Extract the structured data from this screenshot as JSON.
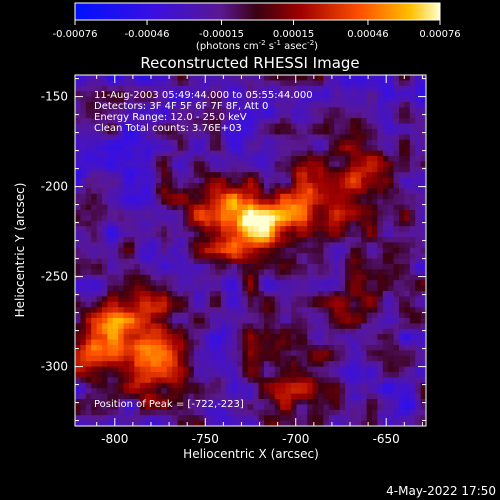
{
  "colorbar": {
    "ticks": [
      -0.00076,
      -0.00046,
      -0.00015,
      0.00015,
      0.00046,
      0.00076
    ],
    "tick_labels": [
      "-0.00076",
      "-0.00046",
      "-0.00015",
      "0.00015",
      "0.00046",
      "0.00076"
    ],
    "label_prefix": "(photons cm",
    "label_exp1": "-2",
    "label_mid": " s",
    "label_exp2": "-1",
    "label_mid2": " asec",
    "label_exp3": "-2",
    "label_suffix": ")",
    "range": [
      -0.00076,
      0.00076
    ]
  },
  "image_title": "Reconstructed RHESSI Image",
  "info": {
    "line1": "11-Aug-2003 05:49:44.000 to 05:55:44.000",
    "line2": "Detectors: 3F 4F 5F 6F 7F 8F, Att 0",
    "line3": "Energy Range: 12.0 - 25.0 keV",
    "line4": "Clean    Total counts: 3.76E+03",
    "peak": "Position of Peak = [-722,-223]"
  },
  "footer_date": "4-May-2022 17:50",
  "chart_data": {
    "type": "heatmap",
    "title": "Reconstructed RHESSI Image",
    "xlabel": "Heliocentric X (arcsec)",
    "ylabel": "Heliocentric Y (arcsec)",
    "xlim": [
      -822,
      -628
    ],
    "ylim": [
      -333,
      -138
    ],
    "xticks": [
      -800,
      -750,
      -700,
      -650
    ],
    "yticks": [
      -300,
      -250,
      -200,
      -150
    ],
    "xtick_labels": [
      "-800",
      "-750",
      "-700",
      "-650"
    ],
    "ytick_labels": [
      "-300",
      "-250",
      "-200",
      "-150"
    ],
    "colormap": "rhessi-blue-red-yellow",
    "value_range": [
      -0.00076,
      0.00076
    ],
    "sources": [
      {
        "x": -722,
        "y": -223,
        "peak": 0.00076
      },
      {
        "x": -690,
        "y": -210,
        "peak": 0.0004
      },
      {
        "x": -660,
        "y": -195,
        "peak": 0.00045
      },
      {
        "x": -790,
        "y": -275,
        "peak": 0.00055
      },
      {
        "x": -775,
        "y": -300,
        "peak": 0.0005
      },
      {
        "x": -815,
        "y": -290,
        "peak": 0.00035
      },
      {
        "x": -745,
        "y": -215,
        "peak": 0.00035
      },
      {
        "x": -700,
        "y": -310,
        "peak": 0.0003
      },
      {
        "x": -665,
        "y": -255,
        "peak": 0.0002
      },
      {
        "x": -720,
        "y": -280,
        "peak": 0.00018
      }
    ]
  }
}
